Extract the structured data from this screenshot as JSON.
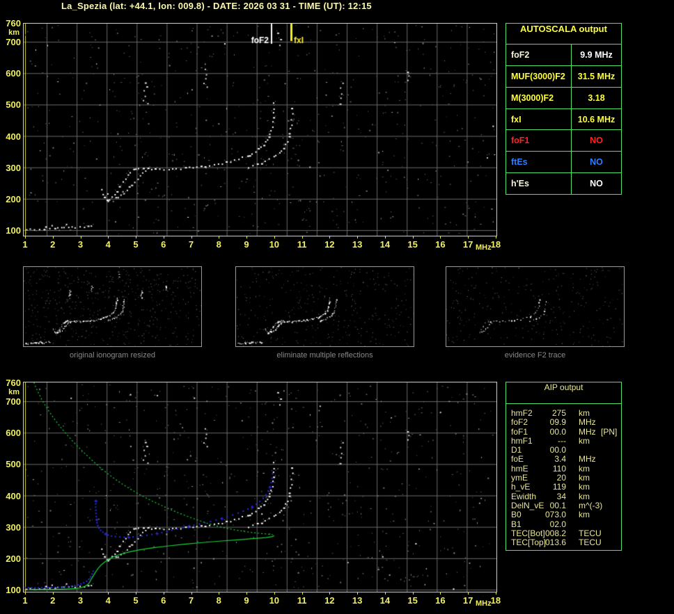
{
  "title": "La_Spezia (lat: +44.1, lon: 009.8) - DATE: 2026 03 31 - TIME (UT): 12:15",
  "colors": {
    "title_yellow": "#f8f8b0",
    "axis_yellow": "#f0f060",
    "border_yellow": "#e2e240",
    "grid_gray": "#6b6b6b",
    "table_green": "#4fe467",
    "bright_yellow": "#ffff38",
    "cream": "#f5f5d8",
    "red": "#ff2020",
    "blue": "#2f7dff",
    "white": "#ffffff",
    "profile_green": "#17d437",
    "fitted_blue": "#2a2aee",
    "caption_gray": "#8a8a8a"
  },
  "autoscala_table": {
    "header": "AUTOSCALA output",
    "rows": [
      {
        "label": "foF2",
        "value": "9.9 MHz",
        "label_color": "#f5f5d8",
        "value_color": "#ffffff"
      },
      {
        "label": "MUF(3000)F2",
        "value": "31.5 MHz",
        "label_color": "#ffff38",
        "value_color": "#ffff38"
      },
      {
        "label": "M(3000)F2",
        "value": "3.18",
        "label_color": "#ffff38",
        "value_color": "#ffff38"
      },
      {
        "label": "fxI",
        "value": "10.6 MHz",
        "label_color": "#ffff38",
        "value_color": "#ffff38"
      },
      {
        "label": "foF1",
        "value": "NO",
        "label_color": "#ff2020",
        "value_color": "#ff2020"
      },
      {
        "label": "ftEs",
        "value": "NO",
        "label_color": "#2f7dff",
        "value_color": "#2f7dff"
      },
      {
        "label": "h'Es",
        "value": "NO",
        "label_color": "#f5f5d8",
        "value_color": "#ffffff"
      }
    ]
  },
  "aip_table": {
    "header": "AIP output",
    "rows": [
      {
        "label": "hmF2",
        "value": "275",
        "unit": "km",
        "extra": ""
      },
      {
        "label": "foF2",
        "value": "09.9",
        "unit": "MHz",
        "extra": ""
      },
      {
        "label": "foF1",
        "value": "00.0",
        "unit": "MHz",
        "extra": "[PN]"
      },
      {
        "label": "hmF1",
        "value": "---",
        "unit": "km",
        "extra": ""
      },
      {
        "label": "D1",
        "value": "00.0",
        "unit": "",
        "extra": ""
      },
      {
        "label": "foE",
        "value": "3.4",
        "unit": "MHz",
        "extra": ""
      },
      {
        "label": "hmE",
        "value": "110",
        "unit": "km",
        "extra": ""
      },
      {
        "label": "ymE",
        "value": "20",
        "unit": "km",
        "extra": ""
      },
      {
        "label": "h_vE",
        "value": "119",
        "unit": "km",
        "extra": ""
      },
      {
        "label": "Ewidth",
        "value": "34",
        "unit": "km",
        "extra": ""
      },
      {
        "label": "DelN_vE",
        "value": "00.1",
        "unit": "m^(-3)",
        "extra": ""
      },
      {
        "label": "B0",
        "value": "073.0",
        "unit": "km",
        "extra": ""
      },
      {
        "label": "B1",
        "value": "02.0",
        "unit": "",
        "extra": ""
      },
      {
        "label": "TEC[Bot]",
        "value": "008.2",
        "unit": "TECU",
        "extra": ""
      },
      {
        "label": "TEC[Top]",
        "value": "013.6",
        "unit": "TECU",
        "extra": ""
      }
    ]
  },
  "thumbnails": [
    {
      "caption": "original ionogram resized",
      "trace": "full",
      "noise_dots": 520,
      "seed": 7
    },
    {
      "caption": "eliminate multiple reflections",
      "trace": "clean",
      "noise_dots": 340,
      "seed": 13
    },
    {
      "caption": "evidence F2 trace",
      "trace": "f2",
      "noise_dots": 300,
      "seed": 23
    }
  ],
  "chart_data": {
    "type": "scatter",
    "xlabel": "MHz",
    "ylabel": "km",
    "xlim": [
      1,
      18
    ],
    "ylim": [
      100,
      760
    ],
    "x_ticks": [
      1,
      2,
      3,
      4,
      5,
      6,
      7,
      8,
      9,
      10,
      11,
      12,
      13,
      14,
      15,
      16,
      17,
      18
    ],
    "y_ticks": [
      760,
      700,
      600,
      500,
      400,
      300,
      200,
      100
    ],
    "grid": true,
    "echo_trace": {
      "e_region": [
        [
          1.05,
          102
        ],
        [
          1.15,
          104
        ],
        [
          1.3,
          103
        ],
        [
          1.5,
          104
        ],
        [
          1.65,
          106
        ],
        [
          1.75,
          111
        ],
        [
          1.85,
          108
        ],
        [
          1.95,
          114
        ],
        [
          2.05,
          107
        ],
        [
          2.15,
          110
        ],
        [
          2.3,
          108
        ],
        [
          2.4,
          112
        ],
        [
          2.5,
          119
        ],
        [
          2.55,
          109
        ],
        [
          2.7,
          112
        ],
        [
          2.8,
          109
        ],
        [
          2.95,
          113
        ],
        [
          3.1,
          111
        ],
        [
          3.25,
          115
        ],
        [
          3.4,
          113
        ]
      ],
      "f2_o_trace": [
        [
          3.75,
          230
        ],
        [
          3.8,
          218
        ],
        [
          3.85,
          207
        ],
        [
          3.92,
          199
        ],
        [
          3.98,
          196
        ],
        [
          4.05,
          199
        ],
        [
          4.12,
          205
        ],
        [
          4.2,
          213
        ],
        [
          4.3,
          226
        ],
        [
          4.4,
          240
        ],
        [
          4.5,
          254
        ],
        [
          4.6,
          267
        ],
        [
          4.7,
          278
        ],
        [
          4.8,
          287
        ],
        [
          4.9,
          293
        ],
        [
          5.0,
          297
        ],
        [
          5.1,
          299
        ],
        [
          5.25,
          300
        ],
        [
          5.4,
          298
        ],
        [
          5.55,
          296
        ],
        [
          5.7,
          295
        ],
        [
          5.85,
          295
        ],
        [
          6.0,
          295
        ],
        [
          6.15,
          296
        ],
        [
          6.3,
          296
        ],
        [
          6.45,
          297
        ],
        [
          6.6,
          298
        ],
        [
          6.75,
          299
        ],
        [
          6.9,
          300
        ],
        [
          7.05,
          301
        ],
        [
          7.2,
          302
        ],
        [
          7.35,
          304
        ],
        [
          7.5,
          305
        ],
        [
          7.65,
          307
        ],
        [
          7.8,
          309
        ],
        [
          7.95,
          311
        ],
        [
          8.1,
          314
        ],
        [
          8.25,
          317
        ],
        [
          8.4,
          320
        ],
        [
          8.55,
          324
        ],
        [
          8.7,
          328
        ],
        [
          8.85,
          332
        ],
        [
          9.0,
          337
        ],
        [
          9.1,
          341
        ],
        [
          9.2,
          346
        ],
        [
          9.3,
          352
        ],
        [
          9.4,
          359
        ],
        [
          9.5,
          367
        ],
        [
          9.58,
          374
        ],
        [
          9.65,
          381
        ],
        [
          9.72,
          390
        ],
        [
          9.78,
          399
        ],
        [
          9.83,
          409
        ],
        [
          9.87,
          420
        ],
        [
          9.9,
          432
        ],
        [
          9.92,
          445
        ],
        [
          9.94,
          459
        ],
        [
          9.95,
          474
        ],
        [
          9.96,
          489
        ],
        [
          9.97,
          505
        ]
      ],
      "f2_cusp_branch": [
        [
          4.25,
          203
        ],
        [
          4.35,
          208
        ],
        [
          4.45,
          214
        ],
        [
          4.55,
          221
        ],
        [
          4.65,
          229
        ],
        [
          4.75,
          238
        ],
        [
          4.85,
          247
        ],
        [
          4.95,
          257
        ],
        [
          5.05,
          266
        ],
        [
          5.15,
          275
        ],
        [
          5.25,
          283
        ],
        [
          5.35,
          290
        ]
      ],
      "f2_x_trace": [
        [
          9.05,
          303
        ],
        [
          9.2,
          307
        ],
        [
          9.35,
          311
        ],
        [
          9.5,
          316
        ],
        [
          9.65,
          322
        ],
        [
          9.8,
          328
        ],
        [
          9.95,
          334
        ],
        [
          10.05,
          340
        ],
        [
          10.15,
          347
        ],
        [
          10.25,
          355
        ],
        [
          10.33,
          364
        ],
        [
          10.4,
          374
        ],
        [
          10.46,
          385
        ],
        [
          10.5,
          397
        ],
        [
          10.54,
          410
        ],
        [
          10.57,
          424
        ],
        [
          10.59,
          439
        ],
        [
          10.61,
          455
        ],
        [
          10.62,
          471
        ],
        [
          10.63,
          488
        ]
      ],
      "multihop_echoes": [
        [
          5.28,
          516
        ],
        [
          5.32,
          530
        ],
        [
          5.3,
          545
        ],
        [
          5.36,
          559
        ],
        [
          5.33,
          573
        ],
        [
          5.4,
          504
        ],
        [
          7.45,
          570
        ],
        [
          7.5,
          584
        ],
        [
          7.52,
          598
        ],
        [
          7.48,
          612
        ],
        [
          7.55,
          557
        ],
        [
          12.35,
          506
        ],
        [
          12.4,
          521
        ],
        [
          12.42,
          537
        ],
        [
          12.38,
          553
        ],
        [
          12.45,
          569
        ],
        [
          14.78,
          577
        ],
        [
          14.82,
          592
        ],
        [
          14.8,
          607
        ],
        [
          10.15,
          690
        ],
        [
          10.2,
          710
        ],
        [
          10.1,
          730
        ]
      ]
    },
    "top_panel": {
      "markers": [
        {
          "label": "foF2",
          "x_mhz": 9.9,
          "color": "#ffffff"
        },
        {
          "label": "fxI",
          "x_mhz": 10.6,
          "color": "#f5ef25"
        }
      ]
    },
    "bottom_panel": {
      "profile_nose_index": 32,
      "density_profile_green": [
        [
          1.32,
          760
        ],
        [
          1.4,
          742
        ],
        [
          1.5,
          724
        ],
        [
          1.6,
          706
        ],
        [
          1.72,
          688
        ],
        [
          1.85,
          670
        ],
        [
          1.99,
          652
        ],
        [
          2.14,
          634
        ],
        [
          2.3,
          616
        ],
        [
          2.47,
          598
        ],
        [
          2.65,
          580
        ],
        [
          2.84,
          562
        ],
        [
          3.04,
          544
        ],
        [
          3.25,
          526
        ],
        [
          3.47,
          508
        ],
        [
          3.7,
          490
        ],
        [
          3.95,
          472
        ],
        [
          4.22,
          454
        ],
        [
          4.52,
          436
        ],
        [
          4.85,
          418
        ],
        [
          5.2,
          400
        ],
        [
          5.6,
          382
        ],
        [
          6.03,
          364
        ],
        [
          6.5,
          346
        ],
        [
          7.0,
          329
        ],
        [
          7.52,
          313
        ],
        [
          8.05,
          300
        ],
        [
          8.6,
          290
        ],
        [
          9.1,
          283
        ],
        [
          9.5,
          279
        ],
        [
          9.78,
          277
        ],
        [
          9.95,
          275
        ],
        [
          10.0,
          272
        ],
        [
          9.93,
          269
        ],
        [
          9.7,
          266
        ],
        [
          9.3,
          263
        ],
        [
          8.75,
          259
        ],
        [
          8.1,
          255
        ],
        [
          7.4,
          250
        ],
        [
          6.75,
          245
        ],
        [
          6.15,
          239
        ],
        [
          5.6,
          233
        ],
        [
          5.15,
          227
        ],
        [
          4.75,
          220
        ],
        [
          4.45,
          213
        ],
        [
          4.2,
          205
        ],
        [
          4.0,
          196
        ],
        [
          3.86,
          187
        ],
        [
          3.74,
          178
        ],
        [
          3.64,
          168
        ],
        [
          3.56,
          158
        ],
        [
          3.49,
          148
        ],
        [
          3.43,
          139
        ],
        [
          3.37,
          130
        ],
        [
          3.32,
          122
        ],
        [
          3.26,
          116
        ],
        [
          3.17,
          111
        ],
        [
          3.05,
          107
        ],
        [
          2.9,
          104
        ],
        [
          2.7,
          103
        ],
        [
          2.45,
          102
        ],
        [
          2.15,
          101
        ],
        [
          1.85,
          101
        ],
        [
          1.5,
          101
        ],
        [
          1.15,
          101
        ]
      ],
      "fitted_trace_blue_e": [
        [
          1.0,
          106
        ],
        [
          1.12,
          106
        ],
        [
          1.24,
          106
        ],
        [
          1.36,
          106
        ],
        [
          1.48,
          106
        ],
        [
          1.6,
          106
        ],
        [
          1.72,
          107
        ],
        [
          1.84,
          107
        ],
        [
          1.96,
          107
        ],
        [
          2.08,
          107
        ],
        [
          2.2,
          108
        ],
        [
          2.32,
          108
        ],
        [
          2.44,
          109
        ],
        [
          2.56,
          110
        ],
        [
          2.68,
          111
        ],
        [
          2.8,
          113
        ],
        [
          2.92,
          115
        ],
        [
          3.02,
          118
        ],
        [
          3.12,
          122
        ],
        [
          3.22,
          127
        ],
        [
          3.3,
          133
        ],
        [
          3.37,
          141
        ],
        [
          3.42,
          150
        ],
        [
          3.46,
          159
        ]
      ],
      "fitted_trace_blue_f": [
        [
          3.55,
          383
        ],
        [
          3.55,
          373
        ],
        [
          3.55,
          363
        ],
        [
          3.56,
          353
        ],
        [
          3.56,
          343
        ],
        [
          3.57,
          333
        ],
        [
          3.58,
          323
        ],
        [
          3.6,
          313
        ],
        [
          3.63,
          304
        ],
        [
          3.67,
          296
        ],
        [
          3.73,
          289
        ],
        [
          3.81,
          283
        ],
        [
          3.9,
          278
        ],
        [
          4.0,
          274
        ],
        [
          4.12,
          271
        ],
        [
          4.26,
          269
        ],
        [
          4.42,
          268
        ],
        [
          4.58,
          267
        ],
        [
          4.74,
          267
        ],
        [
          4.9,
          268
        ],
        [
          5.06,
          269
        ],
        [
          5.22,
          271
        ],
        [
          5.4,
          273
        ],
        [
          5.58,
          276
        ],
        [
          5.76,
          279
        ],
        [
          5.94,
          282
        ],
        [
          6.12,
          286
        ],
        [
          6.3,
          289
        ],
        [
          6.5,
          293
        ],
        [
          6.7,
          297
        ],
        [
          6.9,
          301
        ],
        [
          7.1,
          305
        ],
        [
          7.3,
          309
        ],
        [
          7.5,
          313
        ],
        [
          7.7,
          317
        ],
        [
          7.9,
          322
        ],
        [
          8.1,
          327
        ],
        [
          8.3,
          332
        ],
        [
          8.5,
          338
        ],
        [
          8.7,
          344
        ],
        [
          8.88,
          350
        ],
        [
          9.05,
          357
        ],
        [
          9.2,
          364
        ],
        [
          9.35,
          372
        ],
        [
          9.48,
          381
        ],
        [
          9.6,
          391
        ],
        [
          9.7,
          402
        ],
        [
          9.78,
          414
        ],
        [
          9.84,
          427
        ],
        [
          9.89,
          441
        ],
        [
          9.92,
          455
        ],
        [
          9.94,
          469
        ]
      ]
    },
    "noise": {
      "top_seed": 11,
      "bottom_seed": 29,
      "count": 620
    }
  }
}
